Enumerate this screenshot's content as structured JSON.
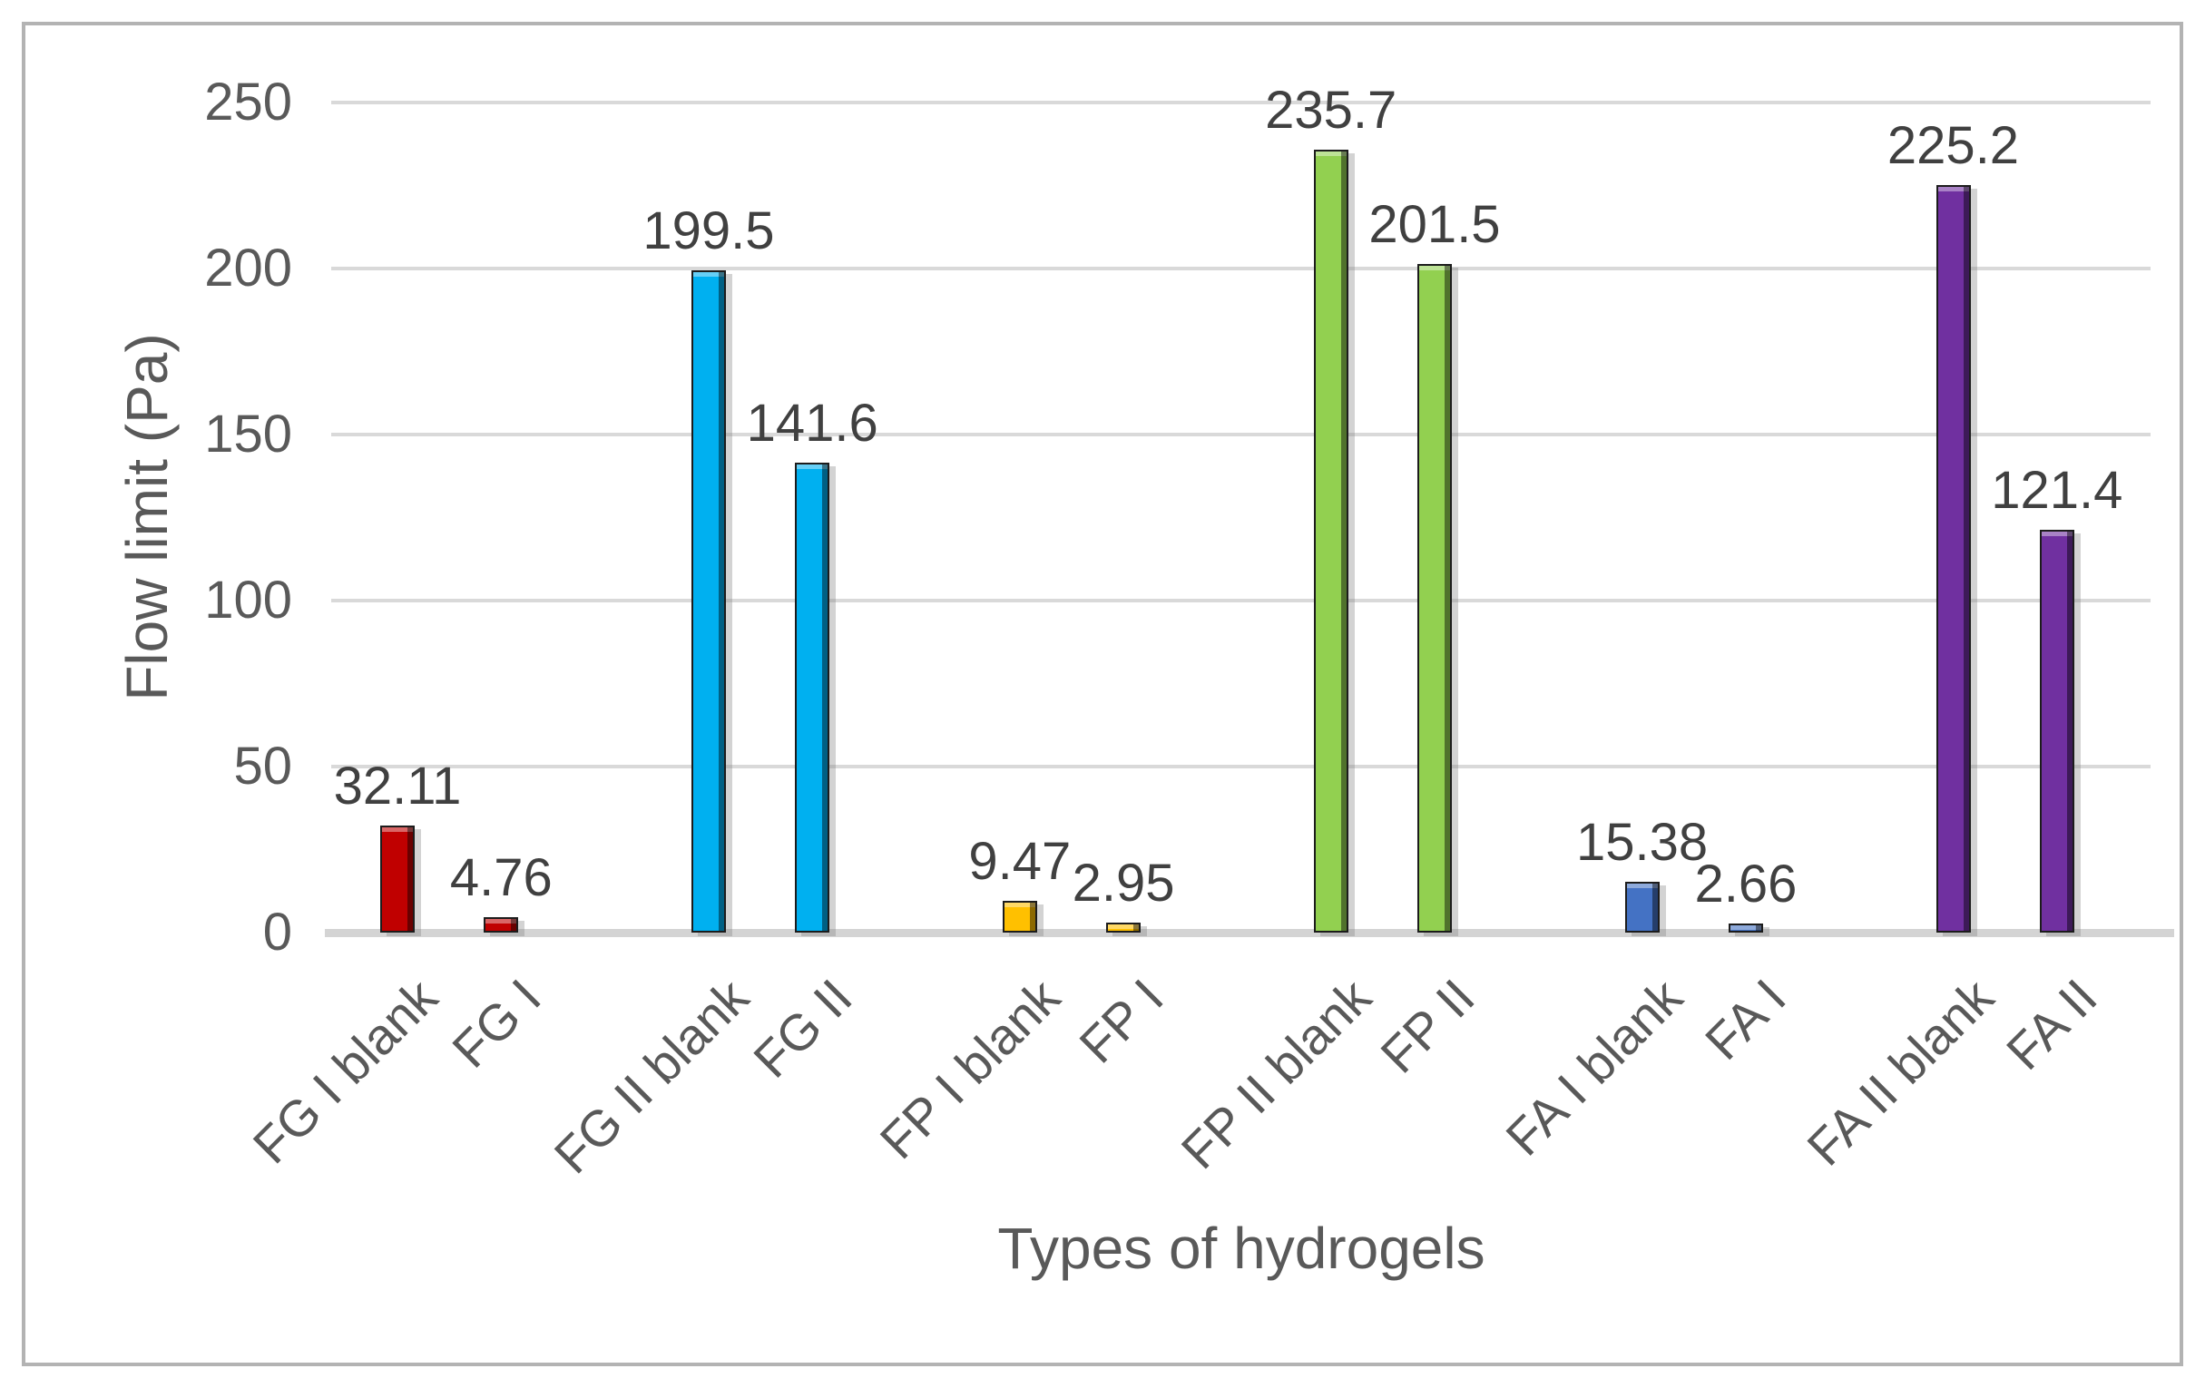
{
  "chart_data": {
    "type": "bar",
    "title": "",
    "xlabel": "Types of hydrogels",
    "ylabel": "Flow limit (Pa)",
    "categories": [
      "FG I blank",
      "FG I",
      "FG II blank",
      "FG II",
      "FP I blank",
      "FP I",
      "FP II blank",
      "FP II",
      "FA I blank",
      "FA I",
      "FA II blank",
      "FA II"
    ],
    "values": [
      32.11,
      4.76,
      199.5,
      141.6,
      9.47,
      2.95,
      235.7,
      201.5,
      15.38,
      2.66,
      225.2,
      121.4
    ],
    "value_labels": [
      "32.11",
      "4.76",
      "199.5",
      "141.6",
      "9.47",
      "2.95",
      "235.7",
      "201.5",
      "15.38",
      "2.66",
      "225.2",
      "121.4"
    ],
    "bar_colors": [
      "#C00000",
      "#C00000",
      "#00B0F0",
      "#00B0F0",
      "#FFC000",
      "#FFC000",
      "#92D050",
      "#92D050",
      "#4472C4",
      "#4472C4",
      "#7030A0",
      "#7030A0"
    ],
    "ylim": [
      0,
      250
    ],
    "yticks": [
      {
        "value": 0,
        "label": "0"
      },
      {
        "value": 50,
        "label": "50"
      },
      {
        "value": 100,
        "label": "100"
      },
      {
        "value": 150,
        "label": "150"
      },
      {
        "value": 200,
        "label": "200"
      },
      {
        "value": 250,
        "label": "250"
      }
    ],
    "grid": true,
    "legend": false,
    "gridline_color": "#d9d9d9",
    "axis_text_color": "#595959",
    "data_label_color": "#404040",
    "frame_color": "#b3b3b3"
  }
}
